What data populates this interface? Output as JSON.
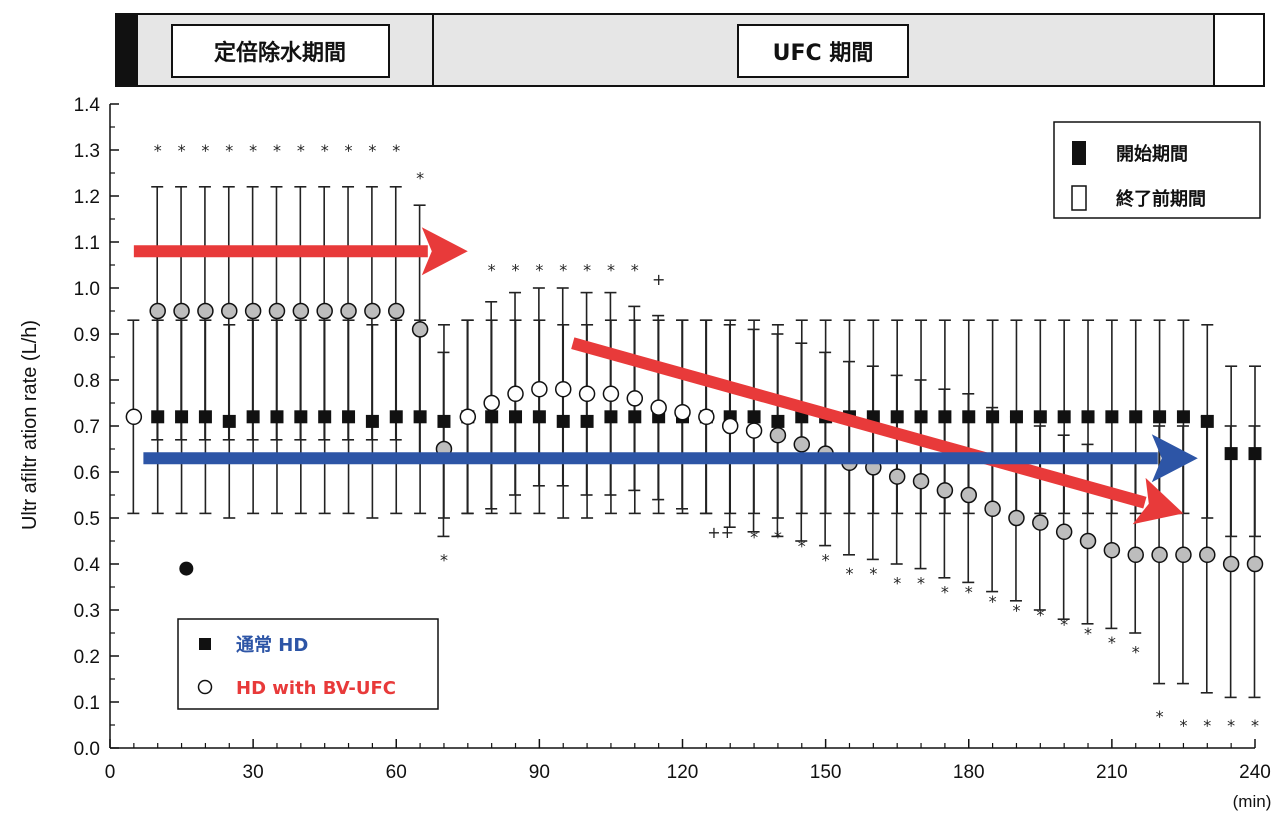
{
  "chart_data": {
    "type": "scatter",
    "title": "",
    "xlabel": "(min)",
    "ylabel": "Ultr afiltr ation rate (L/h)",
    "xlim": [
      0,
      240
    ],
    "ylim": [
      0.0,
      1.4
    ],
    "x_ticks": [
      0,
      30,
      60,
      90,
      120,
      150,
      180,
      210,
      240
    ],
    "y_ticks": [
      "0.0",
      "0.1",
      "0.2",
      "0.3",
      "0.4",
      "0.5",
      "0.6",
      "0.7",
      "0.8",
      "0.9",
      "1.0",
      "1.1",
      "1.2",
      "1.3",
      "1.4"
    ],
    "grid": false,
    "periods": {
      "constant": "定倍除水期間",
      "ufc": "UFC 期間"
    },
    "period_legend": {
      "start": "開始期間",
      "end": "終了前期間"
    },
    "series_legend": {
      "normal": "通常 HD",
      "bvufc": "HD with BV-UFC"
    },
    "series": [
      {
        "name": "通常 HD",
        "marker": "filled-square",
        "color": "#111111",
        "points": [
          {
            "x": 10,
            "y": 0.72,
            "lo": 0.51,
            "hi": 0.93
          },
          {
            "x": 15,
            "y": 0.72,
            "lo": 0.51,
            "hi": 0.93
          },
          {
            "x": 20,
            "y": 0.72,
            "lo": 0.51,
            "hi": 0.93
          },
          {
            "x": 25,
            "y": 0.71,
            "lo": 0.5,
            "hi": 0.92
          },
          {
            "x": 30,
            "y": 0.72,
            "lo": 0.51,
            "hi": 0.93
          },
          {
            "x": 35,
            "y": 0.72,
            "lo": 0.51,
            "hi": 0.93
          },
          {
            "x": 40,
            "y": 0.72,
            "lo": 0.51,
            "hi": 0.93
          },
          {
            "x": 45,
            "y": 0.72,
            "lo": 0.51,
            "hi": 0.93
          },
          {
            "x": 50,
            "y": 0.72,
            "lo": 0.51,
            "hi": 0.93
          },
          {
            "x": 55,
            "y": 0.71,
            "lo": 0.5,
            "hi": 0.92
          },
          {
            "x": 60,
            "y": 0.72,
            "lo": 0.51,
            "hi": 0.93
          },
          {
            "x": 65,
            "y": 0.72,
            "lo": 0.51,
            "hi": 0.93
          },
          {
            "x": 70,
            "y": 0.71,
            "lo": 0.5,
            "hi": 0.92
          },
          {
            "x": 75,
            "y": 0.72,
            "lo": 0.51,
            "hi": 0.93
          },
          {
            "x": 80,
            "y": 0.72,
            "lo": 0.51,
            "hi": 0.93
          },
          {
            "x": 85,
            "y": 0.72,
            "lo": 0.51,
            "hi": 0.93
          },
          {
            "x": 90,
            "y": 0.72,
            "lo": 0.51,
            "hi": 0.93
          },
          {
            "x": 95,
            "y": 0.71,
            "lo": 0.5,
            "hi": 0.92
          },
          {
            "x": 100,
            "y": 0.71,
            "lo": 0.5,
            "hi": 0.92
          },
          {
            "x": 105,
            "y": 0.72,
            "lo": 0.51,
            "hi": 0.93
          },
          {
            "x": 110,
            "y": 0.72,
            "lo": 0.51,
            "hi": 0.93
          },
          {
            "x": 115,
            "y": 0.72,
            "lo": 0.51,
            "hi": 0.93
          },
          {
            "x": 120,
            "y": 0.72,
            "lo": 0.51,
            "hi": 0.93
          },
          {
            "x": 125,
            "y": 0.72,
            "lo": 0.51,
            "hi": 0.93
          },
          {
            "x": 130,
            "y": 0.72,
            "lo": 0.51,
            "hi": 0.93
          },
          {
            "x": 135,
            "y": 0.72,
            "lo": 0.51,
            "hi": 0.93
          },
          {
            "x": 140,
            "y": 0.71,
            "lo": 0.5,
            "hi": 0.92
          },
          {
            "x": 145,
            "y": 0.72,
            "lo": 0.51,
            "hi": 0.93
          },
          {
            "x": 150,
            "y": 0.72,
            "lo": 0.51,
            "hi": 0.93
          },
          {
            "x": 155,
            "y": 0.72,
            "lo": 0.51,
            "hi": 0.93
          },
          {
            "x": 160,
            "y": 0.72,
            "lo": 0.51,
            "hi": 0.93
          },
          {
            "x": 165,
            "y": 0.72,
            "lo": 0.51,
            "hi": 0.93
          },
          {
            "x": 170,
            "y": 0.72,
            "lo": 0.51,
            "hi": 0.93
          },
          {
            "x": 175,
            "y": 0.72,
            "lo": 0.51,
            "hi": 0.93
          },
          {
            "x": 180,
            "y": 0.72,
            "lo": 0.51,
            "hi": 0.93
          },
          {
            "x": 185,
            "y": 0.72,
            "lo": 0.51,
            "hi": 0.93
          },
          {
            "x": 190,
            "y": 0.72,
            "lo": 0.51,
            "hi": 0.93
          },
          {
            "x": 195,
            "y": 0.72,
            "lo": 0.51,
            "hi": 0.93
          },
          {
            "x": 200,
            "y": 0.72,
            "lo": 0.51,
            "hi": 0.93
          },
          {
            "x": 205,
            "y": 0.72,
            "lo": 0.51,
            "hi": 0.93
          },
          {
            "x": 210,
            "y": 0.72,
            "lo": 0.51,
            "hi": 0.93
          },
          {
            "x": 215,
            "y": 0.72,
            "lo": 0.51,
            "hi": 0.93
          },
          {
            "x": 220,
            "y": 0.72,
            "lo": 0.51,
            "hi": 0.93
          },
          {
            "x": 225,
            "y": 0.72,
            "lo": 0.51,
            "hi": 0.93
          },
          {
            "x": 230,
            "y": 0.71,
            "lo": 0.5,
            "hi": 0.92
          },
          {
            "x": 235,
            "y": 0.64,
            "lo": 0.46,
            "hi": 0.83
          },
          {
            "x": 240,
            "y": 0.64,
            "lo": 0.46,
            "hi": 0.83
          }
        ]
      },
      {
        "name": "HD with BV-UFC",
        "marker": "open-circle",
        "color": "#111111",
        "points": [
          {
            "x": 5,
            "y": 0.72,
            "lo": 0.51,
            "hi": 0.93,
            "fill": "white"
          },
          {
            "x": 10,
            "y": 0.95,
            "lo": 0.67,
            "hi": 1.22,
            "fill": "grey"
          },
          {
            "x": 15,
            "y": 0.95,
            "lo": 0.67,
            "hi": 1.22,
            "fill": "grey"
          },
          {
            "x": 20,
            "y": 0.95,
            "lo": 0.67,
            "hi": 1.22,
            "fill": "grey"
          },
          {
            "x": 25,
            "y": 0.95,
            "lo": 0.67,
            "hi": 1.22,
            "fill": "grey"
          },
          {
            "x": 30,
            "y": 0.95,
            "lo": 0.67,
            "hi": 1.22,
            "fill": "grey"
          },
          {
            "x": 35,
            "y": 0.95,
            "lo": 0.67,
            "hi": 1.22,
            "fill": "grey"
          },
          {
            "x": 40,
            "y": 0.95,
            "lo": 0.67,
            "hi": 1.22,
            "fill": "grey"
          },
          {
            "x": 45,
            "y": 0.95,
            "lo": 0.67,
            "hi": 1.22,
            "fill": "grey"
          },
          {
            "x": 50,
            "y": 0.95,
            "lo": 0.67,
            "hi": 1.22,
            "fill": "grey"
          },
          {
            "x": 55,
            "y": 0.95,
            "lo": 0.67,
            "hi": 1.22,
            "fill": "grey"
          },
          {
            "x": 60,
            "y": 0.95,
            "lo": 0.67,
            "hi": 1.22,
            "fill": "grey"
          },
          {
            "x": 65,
            "y": 0.91,
            "lo": 0.64,
            "hi": 1.18,
            "fill": "grey"
          },
          {
            "x": 70,
            "y": 0.65,
            "lo": 0.46,
            "hi": 0.86,
            "fill": "grey"
          },
          {
            "x": 75,
            "y": 0.72,
            "lo": 0.51,
            "hi": 0.93,
            "fill": "white"
          },
          {
            "x": 80,
            "y": 0.75,
            "lo": 0.52,
            "hi": 0.97,
            "fill": "white"
          },
          {
            "x": 85,
            "y": 0.77,
            "lo": 0.55,
            "hi": 0.99,
            "fill": "white"
          },
          {
            "x": 90,
            "y": 0.78,
            "lo": 0.57,
            "hi": 1.0,
            "fill": "white"
          },
          {
            "x": 95,
            "y": 0.78,
            "lo": 0.57,
            "hi": 1.0,
            "fill": "white"
          },
          {
            "x": 100,
            "y": 0.77,
            "lo": 0.55,
            "hi": 0.99,
            "fill": "white"
          },
          {
            "x": 105,
            "y": 0.77,
            "lo": 0.55,
            "hi": 0.99,
            "fill": "white"
          },
          {
            "x": 110,
            "y": 0.76,
            "lo": 0.56,
            "hi": 0.96,
            "fill": "white"
          },
          {
            "x": 115,
            "y": 0.74,
            "lo": 0.54,
            "hi": 0.94,
            "fill": "white"
          },
          {
            "x": 120,
            "y": 0.73,
            "lo": 0.52,
            "hi": 0.93,
            "fill": "white"
          },
          {
            "x": 125,
            "y": 0.72,
            "lo": 0.51,
            "hi": 0.93,
            "fill": "white"
          },
          {
            "x": 130,
            "y": 0.7,
            "lo": 0.48,
            "hi": 0.92,
            "fill": "white"
          },
          {
            "x": 135,
            "y": 0.69,
            "lo": 0.47,
            "hi": 0.91,
            "fill": "white"
          },
          {
            "x": 140,
            "y": 0.68,
            "lo": 0.46,
            "hi": 0.9,
            "fill": "grey"
          },
          {
            "x": 145,
            "y": 0.66,
            "lo": 0.45,
            "hi": 0.88,
            "fill": "grey"
          },
          {
            "x": 150,
            "y": 0.64,
            "lo": 0.44,
            "hi": 0.86,
            "fill": "grey"
          },
          {
            "x": 155,
            "y": 0.62,
            "lo": 0.42,
            "hi": 0.84,
            "fill": "grey"
          },
          {
            "x": 160,
            "y": 0.61,
            "lo": 0.41,
            "hi": 0.83,
            "fill": "grey"
          },
          {
            "x": 165,
            "y": 0.59,
            "lo": 0.4,
            "hi": 0.81,
            "fill": "grey"
          },
          {
            "x": 170,
            "y": 0.58,
            "lo": 0.39,
            "hi": 0.8,
            "fill": "grey"
          },
          {
            "x": 175,
            "y": 0.56,
            "lo": 0.37,
            "hi": 0.78,
            "fill": "grey"
          },
          {
            "x": 180,
            "y": 0.55,
            "lo": 0.36,
            "hi": 0.77,
            "fill": "grey"
          },
          {
            "x": 185,
            "y": 0.52,
            "lo": 0.34,
            "hi": 0.74,
            "fill": "grey"
          },
          {
            "x": 190,
            "y": 0.5,
            "lo": 0.32,
            "hi": 0.72,
            "fill": "grey"
          },
          {
            "x": 195,
            "y": 0.49,
            "lo": 0.3,
            "hi": 0.7,
            "fill": "grey"
          },
          {
            "x": 200,
            "y": 0.47,
            "lo": 0.28,
            "hi": 0.68,
            "fill": "grey"
          },
          {
            "x": 205,
            "y": 0.45,
            "lo": 0.27,
            "hi": 0.66,
            "fill": "grey"
          },
          {
            "x": 210,
            "y": 0.43,
            "lo": 0.26,
            "hi": 0.64,
            "fill": "grey"
          },
          {
            "x": 215,
            "y": 0.42,
            "lo": 0.25,
            "hi": 0.62,
            "fill": "grey"
          },
          {
            "x": 220,
            "y": 0.42,
            "lo": 0.14,
            "hi": 0.7,
            "fill": "grey"
          },
          {
            "x": 225,
            "y": 0.42,
            "lo": 0.14,
            "hi": 0.7,
            "fill": "grey"
          },
          {
            "x": 230,
            "y": 0.42,
            "lo": 0.12,
            "hi": 0.72,
            "fill": "grey"
          },
          {
            "x": 235,
            "y": 0.4,
            "lo": 0.11,
            "hi": 0.7,
            "fill": "grey"
          },
          {
            "x": 240,
            "y": 0.4,
            "lo": 0.11,
            "hi": 0.7,
            "fill": "grey"
          }
        ]
      }
    ],
    "significance_marks": [
      {
        "x": 10,
        "y": 1.3,
        "t": "*"
      },
      {
        "x": 15,
        "y": 1.3,
        "t": "*"
      },
      {
        "x": 20,
        "y": 1.3,
        "t": "*"
      },
      {
        "x": 25,
        "y": 1.3,
        "t": "*"
      },
      {
        "x": 30,
        "y": 1.3,
        "t": "*"
      },
      {
        "x": 35,
        "y": 1.3,
        "t": "*"
      },
      {
        "x": 40,
        "y": 1.3,
        "t": "*"
      },
      {
        "x": 45,
        "y": 1.3,
        "t": "*"
      },
      {
        "x": 50,
        "y": 1.3,
        "t": "*"
      },
      {
        "x": 55,
        "y": 1.3,
        "t": "*"
      },
      {
        "x": 60,
        "y": 1.3,
        "t": "*"
      },
      {
        "x": 65,
        "y": 1.24,
        "t": "*"
      },
      {
        "x": 80,
        "y": 1.04,
        "t": "*"
      },
      {
        "x": 85,
        "y": 1.04,
        "t": "*"
      },
      {
        "x": 90,
        "y": 1.04,
        "t": "*"
      },
      {
        "x": 95,
        "y": 1.04,
        "t": "*"
      },
      {
        "x": 100,
        "y": 1.04,
        "t": "*"
      },
      {
        "x": 105,
        "y": 1.04,
        "t": "*"
      },
      {
        "x": 110,
        "y": 1.04,
        "t": "*"
      },
      {
        "x": 115,
        "y": 1.02,
        "t": "+"
      },
      {
        "x": 70,
        "y": 0.41,
        "t": "*"
      },
      {
        "x": 128,
        "y": 0.47,
        "t": "++"
      },
      {
        "x": 135,
        "y": 0.46,
        "t": "*"
      },
      {
        "x": 140,
        "y": 0.46,
        "t": "*"
      },
      {
        "x": 145,
        "y": 0.44,
        "t": "*"
      },
      {
        "x": 150,
        "y": 0.41,
        "t": "*"
      },
      {
        "x": 155,
        "y": 0.38,
        "t": "*"
      },
      {
        "x": 160,
        "y": 0.38,
        "t": "*"
      },
      {
        "x": 165,
        "y": 0.36,
        "t": "*"
      },
      {
        "x": 170,
        "y": 0.36,
        "t": "*"
      },
      {
        "x": 175,
        "y": 0.34,
        "t": "*"
      },
      {
        "x": 180,
        "y": 0.34,
        "t": "*"
      },
      {
        "x": 185,
        "y": 0.32,
        "t": "*"
      },
      {
        "x": 190,
        "y": 0.3,
        "t": "*"
      },
      {
        "x": 195,
        "y": 0.29,
        "t": "*"
      },
      {
        "x": 200,
        "y": 0.27,
        "t": "*"
      },
      {
        "x": 205,
        "y": 0.25,
        "t": "*"
      },
      {
        "x": 210,
        "y": 0.23,
        "t": "*"
      },
      {
        "x": 215,
        "y": 0.21,
        "t": "*"
      },
      {
        "x": 220,
        "y": 0.07,
        "t": "*"
      },
      {
        "x": 225,
        "y": 0.05,
        "t": "*"
      },
      {
        "x": 230,
        "y": 0.05,
        "t": "*"
      },
      {
        "x": 235,
        "y": 0.05,
        "t": "*"
      },
      {
        "x": 240,
        "y": 0.05,
        "t": "*"
      }
    ],
    "outlier": {
      "x": 16,
      "y": 0.39
    },
    "arrows": [
      {
        "name": "red-arrow-constant",
        "color": "#e83a3a",
        "x1": 5,
        "y1": 1.08,
        "x2": 75,
        "y2": 1.08
      },
      {
        "name": "red-arrow-ufc",
        "color": "#e83a3a",
        "x1": 97,
        "y1": 0.88,
        "x2": 225,
        "y2": 0.51
      },
      {
        "name": "blue-arrow-normal",
        "color": "#2d55a6",
        "x1": 7,
        "y1": 0.63,
        "x2": 228,
        "y2": 0.63
      }
    ],
    "colors": {
      "red": "#e83a3a",
      "blue": "#2d55a6",
      "grey": "#bdbdbd",
      "band": "#e6e6e6"
    }
  }
}
